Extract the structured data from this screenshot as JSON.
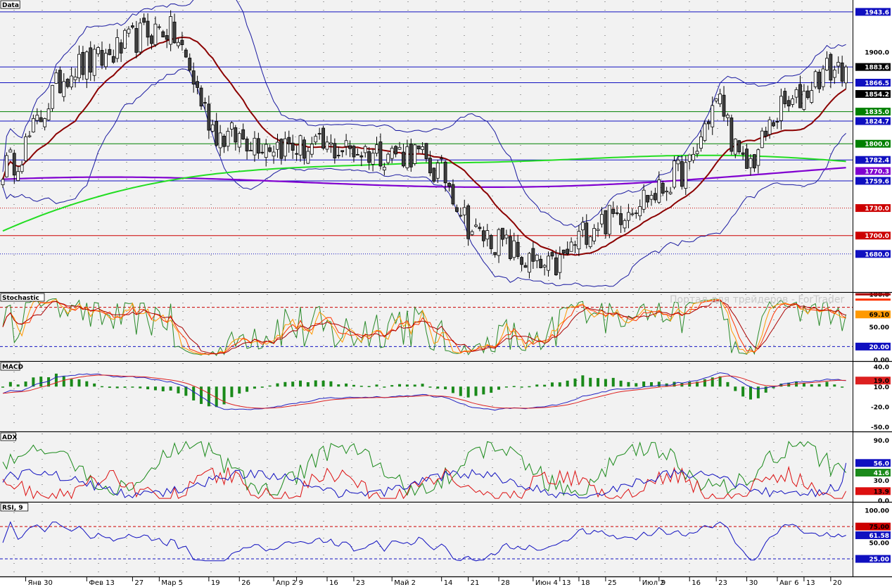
{
  "watermark": "Портал для трейдеров - ForTrader",
  "colors": {
    "panel_bg": "#f2f2f2",
    "price_candle_up": "#ffffff",
    "price_candle_down": "#404040",
    "bollinger": "#1a1aa0",
    "sma_fast": "#8b0000",
    "sma_mid": "#22dd22",
    "sma_slow": "#8000d0",
    "level_blue": "#1010c0",
    "level_red": "#cc0000",
    "level_green": "#008000"
  },
  "chart_data": [
    {
      "type": "candlestick",
      "panel": "Data",
      "title": "Data",
      "y_range": [
        1640,
        1955
      ],
      "y_ticks": [
        1900,
        1800,
        1700
      ],
      "levels": [
        {
          "value": 1943.6,
          "style": "solid",
          "color": "blue"
        },
        {
          "value": 1883.6,
          "style": "solid",
          "color": "blue"
        },
        {
          "value": 1866.5,
          "style": "solid",
          "color": "blue"
        },
        {
          "value": 1854.2,
          "style": "none",
          "color": "blue"
        },
        {
          "value": 1835.0,
          "style": "solid",
          "color": "green"
        },
        {
          "value": 1824.7,
          "style": "solid",
          "color": "blue"
        },
        {
          "value": 1800.0,
          "style": "solid",
          "color": "green"
        },
        {
          "value": 1782.4,
          "style": "solid",
          "color": "blue"
        },
        {
          "value": 1770.3,
          "style": "none",
          "color": "purple"
        },
        {
          "value": 1759.6,
          "style": "solid",
          "color": "blue"
        },
        {
          "value": 1730.0,
          "style": "dotted",
          "color": "red"
        },
        {
          "value": 1700.0,
          "style": "solid",
          "color": "red"
        },
        {
          "value": 1680.0,
          "style": "dotted",
          "color": "blue"
        }
      ],
      "price_labels": [
        {
          "text": "1943.6",
          "value": 1943.6,
          "bg": "#1010c0",
          "fg": "#ffffff"
        },
        {
          "text": "1900.0",
          "value": 1900.0,
          "bg": "none",
          "fg": "#000000"
        },
        {
          "text": "1883.6",
          "value": 1883.6,
          "bg": "#000000",
          "fg": "#ffffff"
        },
        {
          "text": "1866.5",
          "value": 1866.5,
          "bg": "#1010c0",
          "fg": "#ffffff"
        },
        {
          "text": "1854.2",
          "value": 1854.2,
          "bg": "#000000",
          "fg": "#ffffff"
        },
        {
          "text": "1835.0",
          "value": 1835.0,
          "bg": "#008000",
          "fg": "#ffffff"
        },
        {
          "text": "1824.7",
          "value": 1824.7,
          "bg": "#1010c0",
          "fg": "#ffffff"
        },
        {
          "text": "1800.0",
          "value": 1800.0,
          "bg": "#008000",
          "fg": "#ffffff"
        },
        {
          "text": "1782.4",
          "value": 1782.4,
          "bg": "#1010c0",
          "fg": "#ffffff"
        },
        {
          "text": "1770.3",
          "value": 1770.3,
          "bg": "#8000d0",
          "fg": "#ffffff"
        },
        {
          "text": "1759.6",
          "value": 1759.6,
          "bg": "#1010c0",
          "fg": "#ffffff"
        },
        {
          "text": "1730.0",
          "value": 1730.0,
          "bg": "#cc0000",
          "fg": "#ffffff"
        },
        {
          "text": "1700.0",
          "value": 1700.0,
          "bg": "#cc0000",
          "fg": "#ffffff"
        },
        {
          "text": "1680.0",
          "value": 1680.0,
          "bg": "#1010c0",
          "fg": "#ffffff"
        }
      ],
      "key_points": {
        "x_index": [
          0,
          18,
          38,
          52,
          72,
          96,
          102,
          112,
          128,
          140,
          152,
          160,
          168,
          174,
          184,
          194,
          198
        ],
        "close": [
          1775,
          1885,
          1925,
          1808,
          1795,
          1790,
          1770,
          1700,
          1663,
          1715,
          1743,
          1770,
          1845,
          1775,
          1840,
          1880,
          1883.6
        ]
      }
    },
    {
      "type": "line",
      "panel": "Stochastic",
      "title": "Stochastic",
      "y_range": [
        0,
        100
      ],
      "y_ticks": [
        "100.0",
        "50.00",
        "20.00",
        "0.00"
      ],
      "levels": [
        80,
        20
      ],
      "value_labels": [
        "69.10",
        "20.00"
      ],
      "last_values": {
        "k": 69.1,
        "d": 61.8
      }
    },
    {
      "type": "line+histogram",
      "panel": "MACD",
      "title": "MACD",
      "y_range": [
        -55,
        45
      ],
      "y_ticks": [
        "40.0",
        "10.0",
        "-20.0",
        "-50.0"
      ],
      "value_labels": [
        "19.0"
      ],
      "last_values": {
        "macd": 19.0,
        "signal": 17.5
      }
    },
    {
      "type": "line",
      "panel": "ADX",
      "title": "ADX",
      "y_range": [
        0,
        100
      ],
      "y_ticks": [
        "90.0",
        "30.0",
        "0.0"
      ],
      "value_labels": [
        "56.0",
        "41.6",
        "13.9"
      ],
      "last_values": {
        "blue": 56.0,
        "green": 41.6,
        "red": 13.9
      }
    },
    {
      "type": "line",
      "panel": "RSI",
      "title": "RSI, 9",
      "y_range": [
        0,
        110
      ],
      "y_ticks": [
        "100.00",
        "50.00",
        "25.00"
      ],
      "levels": [
        75,
        25
      ],
      "value_labels": [
        "75.00",
        "61.58",
        "25.00"
      ],
      "last_values": {
        "rsi": 61.58
      }
    }
  ],
  "x_axis": {
    "labels": [
      {
        "text": "Янв 30",
        "index": 6
      },
      {
        "text": "Фев 13",
        "index": 22
      },
      {
        "text": "27",
        "index": 34
      },
      {
        "text": "Мар 5",
        "index": 41
      },
      {
        "text": "19",
        "index": 54
      },
      {
        "text": "26",
        "index": 62
      },
      {
        "text": "Апр 2",
        "index": 71
      },
      {
        "text": "9",
        "index": 77
      },
      {
        "text": "16",
        "index": 85
      },
      {
        "text": "23",
        "index": 92
      },
      {
        "text": "Май 2",
        "index": 102
      },
      {
        "text": "14",
        "index": 115
      },
      {
        "text": "21",
        "index": 122
      },
      {
        "text": "28",
        "index": 130
      },
      {
        "text": "Июн 4",
        "index": 139
      },
      {
        "text": "13",
        "index": 146
      },
      {
        "text": "18",
        "index": 151
      },
      {
        "text": "25",
        "index": 158
      },
      {
        "text": "Июл 2",
        "index": 167
      },
      {
        "text": "9",
        "index": 172
      },
      {
        "text": "16",
        "index": 180
      },
      {
        "text": "23",
        "index": 187
      },
      {
        "text": "30",
        "index": 195
      },
      {
        "text": "Авг 6",
        "index": 203
      },
      {
        "text": "13",
        "index": 210
      },
      {
        "text": "20",
        "index": 217
      }
    ]
  }
}
